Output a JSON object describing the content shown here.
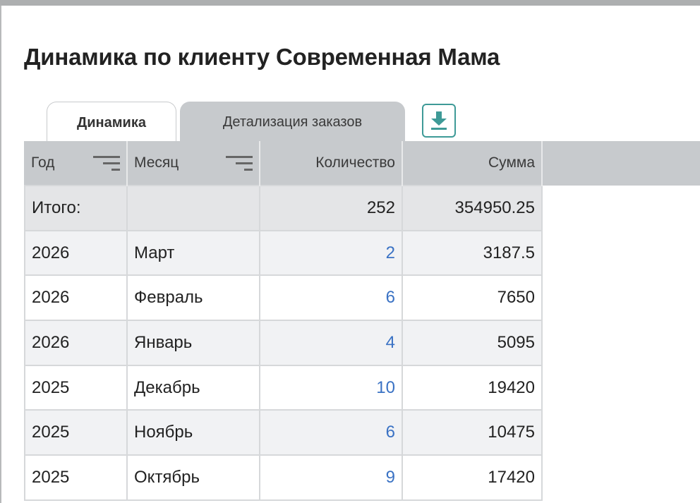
{
  "title": "Динамика по клиенту Современная Мама",
  "tabs": [
    {
      "label": "Динамика",
      "active": true
    },
    {
      "label": "Детализация заказов",
      "active": false
    }
  ],
  "download_icon": "download-icon",
  "accent_color": "#3e9a97",
  "link_color": "#3a72c4",
  "table": {
    "headers": [
      "Год",
      "Месяц",
      "Количество",
      "Сумма"
    ],
    "total": {
      "label": "Итого:",
      "month": "",
      "quantity": "252",
      "sum": "354950.25"
    },
    "rows": [
      {
        "year": "2026",
        "month": "Март",
        "quantity": "2",
        "sum": "3187.5"
      },
      {
        "year": "2026",
        "month": "Февраль",
        "quantity": "6",
        "sum": "7650"
      },
      {
        "year": "2026",
        "month": "Январь",
        "quantity": "4",
        "sum": "5095"
      },
      {
        "year": "2025",
        "month": "Декабрь",
        "quantity": "10",
        "sum": "19420"
      },
      {
        "year": "2025",
        "month": "Ноябрь",
        "quantity": "6",
        "sum": "10475"
      },
      {
        "year": "2025",
        "month": "Октябрь",
        "quantity": "9",
        "sum": "17420"
      }
    ]
  }
}
